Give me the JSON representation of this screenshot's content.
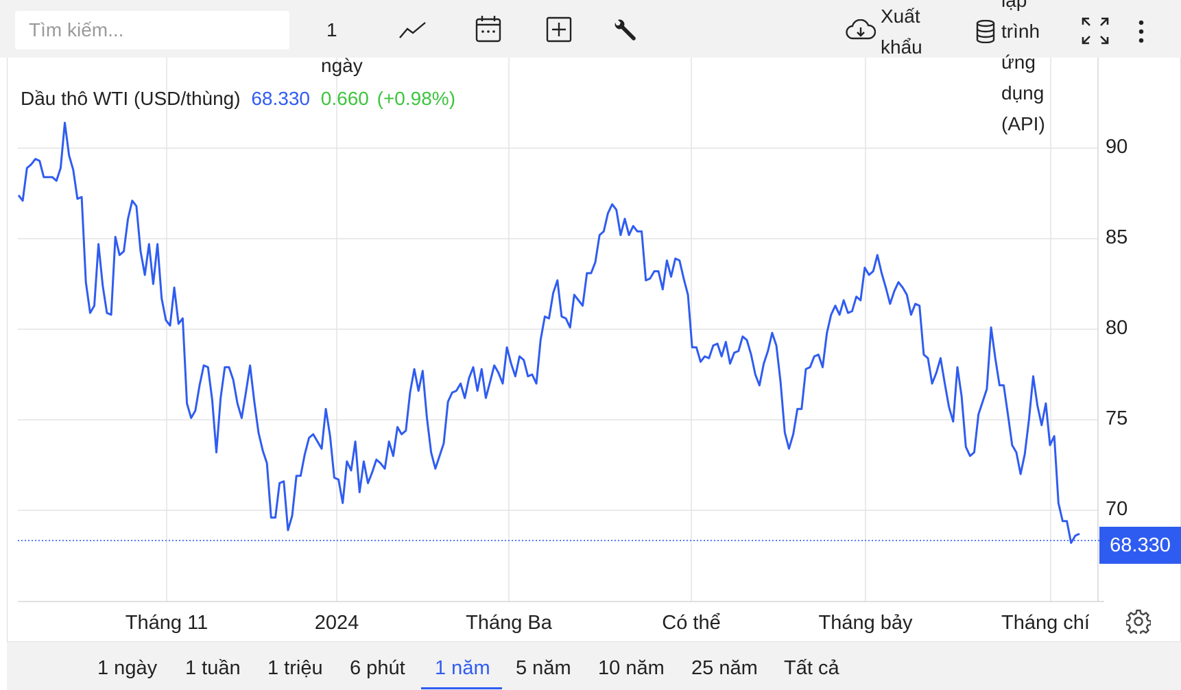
{
  "toolbar": {
    "search_placeholder": "Tìm kiếm...",
    "interval_line1": "1",
    "interval_line2": "ngày",
    "export_line1": "Xuất",
    "export_line2": "khẩu",
    "api_line0": "lập",
    "api_line1": "trình",
    "api_line2": "ứng",
    "api_line3": "dụng",
    "api_line4": "(API)",
    "icons": [
      "line-chart-icon",
      "calendar-icon",
      "plus-box-icon",
      "wrench-icon",
      "cloud-download-icon",
      "database-icon",
      "fullscreen-icon",
      "more-vertical-icon"
    ]
  },
  "legend": {
    "name": "Dầu thô WTI (USD/thùng)",
    "price": "68.330",
    "change": "0.660",
    "change_pct": "(+0.98%)"
  },
  "price_tag": "68.330",
  "colors": {
    "line": "#2f5cf0",
    "positive": "#3ec43e",
    "grid": "#e3e3e3"
  },
  "chart_data": {
    "type": "line",
    "series": [
      {
        "values": [
          87.4,
          87.1,
          88.9,
          89.1,
          89.4,
          89.3,
          88.4,
          88.4,
          88.4,
          88.2,
          88.9,
          91.4,
          89.6,
          88.8,
          87.2,
          87.3,
          82.6,
          80.9,
          81.3,
          84.7,
          82.4,
          80.9,
          80.8,
          85.1,
          84.1,
          84.3,
          86.1,
          87.1,
          86.8,
          84.3,
          83.0,
          84.7,
          82.5,
          84.7,
          81.7,
          80.5,
          80.2,
          82.3,
          80.3,
          80.6,
          75.9,
          75.1,
          75.5,
          76.9,
          78.0,
          77.9,
          76.1,
          73.2,
          76.2,
          77.9,
          77.9,
          77.2,
          75.9,
          75.1,
          76.5,
          78.0,
          76.0,
          74.3,
          73.3,
          72.6,
          69.6,
          69.6,
          71.5,
          71.6,
          68.9,
          69.7,
          71.9,
          71.9,
          73.1,
          74.0,
          74.2,
          73.8,
          73.4,
          75.6,
          74.1,
          71.8,
          71.7,
          70.4,
          72.7,
          72.2,
          73.8,
          71.0,
          72.7,
          71.5,
          72.1,
          72.8,
          72.6,
          72.3,
          73.8,
          73.0,
          74.6,
          74.2,
          74.4,
          76.5,
          77.8,
          76.6,
          77.7,
          75.1,
          73.2,
          72.3,
          73.0,
          73.7,
          76.0,
          76.5,
          76.6,
          77.0,
          76.2,
          77.3,
          77.9,
          76.6,
          77.8,
          76.2,
          77.1,
          78.0,
          77.6,
          77.0,
          79.0,
          78.1,
          77.4,
          78.5,
          78.3,
          77.4,
          77.5,
          77.0,
          79.4,
          80.7,
          80.6,
          82.0,
          82.7,
          80.7,
          80.6,
          80.1,
          81.9,
          81.6,
          81.3,
          83.1,
          83.1,
          83.7,
          85.2,
          85.4,
          86.4,
          86.9,
          86.6,
          85.2,
          86.1,
          85.2,
          85.7,
          85.4,
          85.4,
          82.7,
          82.8,
          83.2,
          83.2,
          82.2,
          83.8,
          82.9,
          83.9,
          83.8,
          82.8,
          81.9,
          79.0,
          79.0,
          78.2,
          78.5,
          78.4,
          79.1,
          79.2,
          78.5,
          79.3,
          78.1,
          78.7,
          78.8,
          79.6,
          79.4,
          78.6,
          77.5,
          76.9,
          78.1,
          78.8,
          79.8,
          79.1,
          77.1,
          74.3,
          73.4,
          74.2,
          75.6,
          75.6,
          77.8,
          77.9,
          78.5,
          78.6,
          77.9,
          79.8,
          80.8,
          81.3,
          80.8,
          81.6,
          80.9,
          81.0,
          81.8,
          81.6,
          83.4,
          83.0,
          83.2,
          84.1,
          83.1,
          82.3,
          81.4,
          82.1,
          82.6,
          82.3,
          81.9,
          80.8,
          81.4,
          81.3,
          78.6,
          78.4,
          77.0,
          77.6,
          78.4,
          77.0,
          75.7,
          74.9,
          77.9,
          76.3,
          73.5,
          73.0,
          73.2,
          75.3,
          76.0,
          76.7,
          80.1,
          78.4,
          76.9,
          76.9,
          75.3,
          73.6,
          73.2,
          72.0,
          73.1,
          75.0,
          77.4,
          75.8,
          74.7,
          75.9,
          73.6,
          74.1,
          70.4,
          69.4,
          69.4,
          68.2,
          68.6,
          68.7
        ]
      }
    ],
    "x_ticks": [
      "Tháng 11",
      "2024",
      "Tháng Ba",
      "Có thể",
      "Tháng bảy",
      "Tháng chín"
    ],
    "y_ticks": [
      70,
      75,
      80,
      85,
      90
    ],
    "ylim": [
      63,
      95
    ],
    "last_value": 68.33,
    "grid": true
  },
  "ranges": [
    "1 ngày",
    "1 tuần",
    "1 triệu",
    "6 phút",
    "1 năm",
    "5 năm",
    "10 năm",
    "25 năm",
    "Tất cả"
  ],
  "active_range": "1 năm"
}
